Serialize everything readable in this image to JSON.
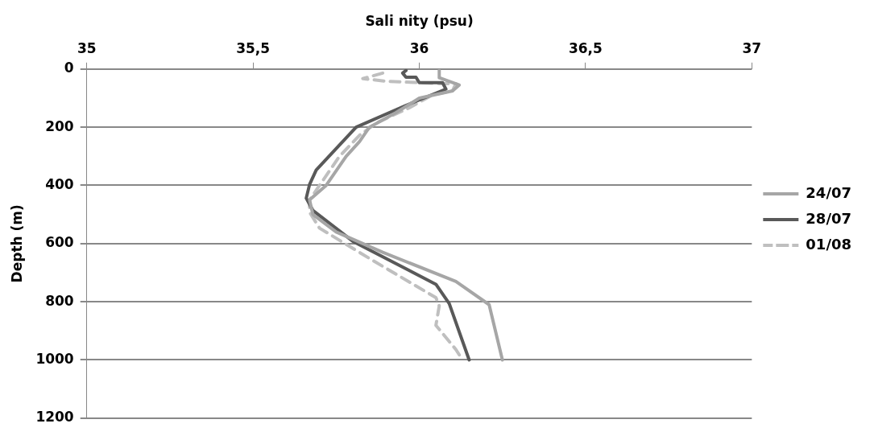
{
  "chart_data": {
    "type": "line",
    "xlabel": "Sali nity (psu)",
    "ylabel": "Depth (m)",
    "xlim": [
      35,
      37
    ],
    "xticks": [
      35,
      {
        "value": 35.5,
        "label": "35,5"
      },
      36,
      {
        "value": 36.5,
        "label": "36,5"
      },
      37
    ],
    "ylim": [
      1200,
      0
    ],
    "yticks": [
      0,
      200,
      400,
      600,
      800,
      1000,
      1200
    ],
    "grid": "y",
    "legend": "right",
    "marker": "none",
    "series": [
      {
        "name": "24/07",
        "color": "#a6a6a6",
        "line_style": "solid",
        "x": [
          36.06,
          36.06,
          36.12,
          36.1,
          36.0,
          35.93,
          35.85,
          35.82,
          35.78,
          35.72,
          35.67,
          35.68,
          35.75,
          35.89,
          36.11,
          36.21,
          36.25
        ],
        "values": [
          5,
          30,
          55,
          75,
          100,
          150,
          200,
          250,
          300,
          400,
          450,
          500,
          560,
          630,
          730,
          810,
          1000
        ]
      },
      {
        "name": "28/07",
        "color": "#595959",
        "line_style": "solid",
        "x": [
          35.96,
          35.95,
          35.96,
          35.99,
          36.0,
          36.07,
          36.08,
          35.96,
          35.81,
          35.69,
          35.67,
          35.66,
          35.68,
          35.8,
          36.05,
          36.09,
          36.15
        ],
        "values": [
          5,
          14,
          28,
          28,
          47,
          47,
          69,
          125,
          200,
          347,
          397,
          444,
          486,
          592,
          740,
          806,
          1000
        ]
      },
      {
        "name": "01/08",
        "color": "#bfbfbf",
        "line_style": "dashed",
        "x": [
          35.89,
          35.83,
          35.9,
          36.06,
          36.11,
          36.1,
          36.04,
          35.97,
          35.87,
          35.82,
          35.76,
          35.7,
          35.67,
          35.67,
          35.7,
          35.86,
          36.05,
          36.06,
          36.05,
          36.11,
          36.13
        ],
        "values": [
          14,
          33,
          42,
          50,
          50,
          75,
          89,
          133,
          186,
          228,
          300,
          400,
          450,
          492,
          547,
          658,
          786,
          814,
          881,
          964,
          1000
        ]
      }
    ]
  }
}
